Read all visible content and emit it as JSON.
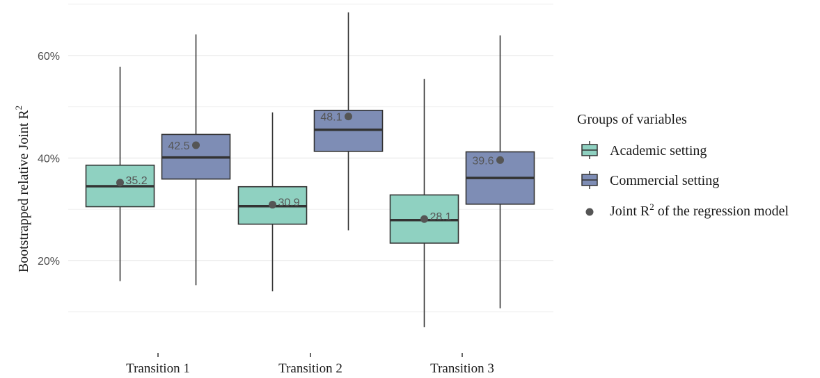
{
  "chart_data": {
    "type": "boxplot",
    "categories": [
      "Transition 1",
      "Transition 2",
      "Transition 3"
    ],
    "ylabel": "Bootstrapped relative Joint R",
    "ylabel_superscript": "2",
    "yticks": [
      20,
      40,
      60
    ],
    "ytick_labels": [
      "20%",
      "40%",
      "60%"
    ],
    "ylim": [
      5.5,
      70
    ],
    "grid": true,
    "legend": {
      "title": "Groups of variables",
      "position": "right",
      "point_label": "Joint R",
      "point_label_superscript": "2",
      "point_label_suffix": " of the regression model"
    },
    "series": [
      {
        "name": "Academic setting",
        "color": "#8fd1c1",
        "boxes": [
          {
            "min": 16.0,
            "q1": 30.5,
            "median": 34.5,
            "q3": 38.6,
            "max": 57.8,
            "joint_r2": 35.2,
            "label": "35.2"
          },
          {
            "min": 14.0,
            "q1": 27.1,
            "median": 30.6,
            "q3": 34.4,
            "max": 48.9,
            "joint_r2": 30.9,
            "label": "30.9"
          },
          {
            "min": 7.0,
            "q1": 23.4,
            "median": 27.9,
            "q3": 32.8,
            "max": 55.4,
            "joint_r2": 28.1,
            "label": "28.1"
          }
        ]
      },
      {
        "name": "Commercial setting",
        "color": "#7e8db5",
        "boxes": [
          {
            "min": 15.2,
            "q1": 35.9,
            "median": 40.1,
            "q3": 44.6,
            "max": 64.1,
            "joint_r2": 42.5,
            "label": "42.5"
          },
          {
            "min": 25.9,
            "q1": 41.3,
            "median": 45.5,
            "q3": 49.3,
            "max": 68.4,
            "joint_r2": 48.1,
            "label": "48.1"
          },
          {
            "min": 10.7,
            "q1": 31.0,
            "median": 36.1,
            "q3": 41.2,
            "max": 63.9,
            "joint_r2": 39.6,
            "label": "39.6"
          }
        ]
      }
    ],
    "point_color": "#555555"
  }
}
